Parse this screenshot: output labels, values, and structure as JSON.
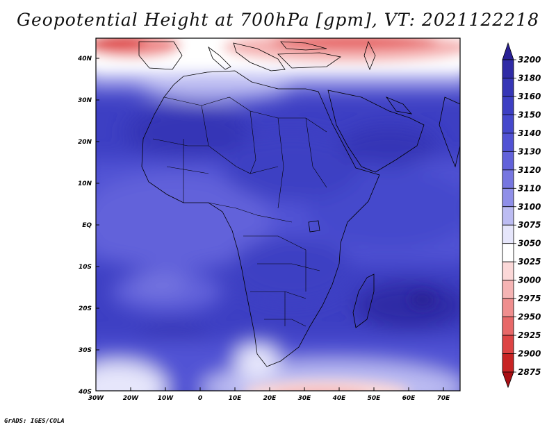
{
  "title": "Geopotential Height at 700hPa [gpm], VT: 2021122218",
  "credit": "GrADS: IGES/COLA",
  "lat_labels": [
    "40N",
    "30N",
    "20N",
    "10N",
    "EQ",
    "10S",
    "20S",
    "30S",
    "40S"
  ],
  "lon_labels": [
    "30W",
    "20W",
    "10W",
    "0",
    "10E",
    "20E",
    "30E",
    "40E",
    "50E",
    "60E",
    "70E"
  ],
  "colorbar": {
    "levels": [
      "3200",
      "3180",
      "3160",
      "3150",
      "3140",
      "3130",
      "3120",
      "3110",
      "3100",
      "3075",
      "3050",
      "3025",
      "3000",
      "2975",
      "2950",
      "2925",
      "2900",
      "2875"
    ],
    "colors": [
      "#2a2196",
      "#2f2ba6",
      "#3636b6",
      "#3d3fc3",
      "#4548cc",
      "#5152d4",
      "#6262da",
      "#7676e0",
      "#8f8fe8",
      "#bcbcf2",
      "#e6e6fb",
      "#ffffff",
      "#fbd8d8",
      "#f5b4b4",
      "#ef8e8e",
      "#e76868",
      "#dd4444",
      "#c82424",
      "#a90f14"
    ]
  },
  "colors": {
    "frame": "#000000",
    "coast": "#000000"
  }
}
